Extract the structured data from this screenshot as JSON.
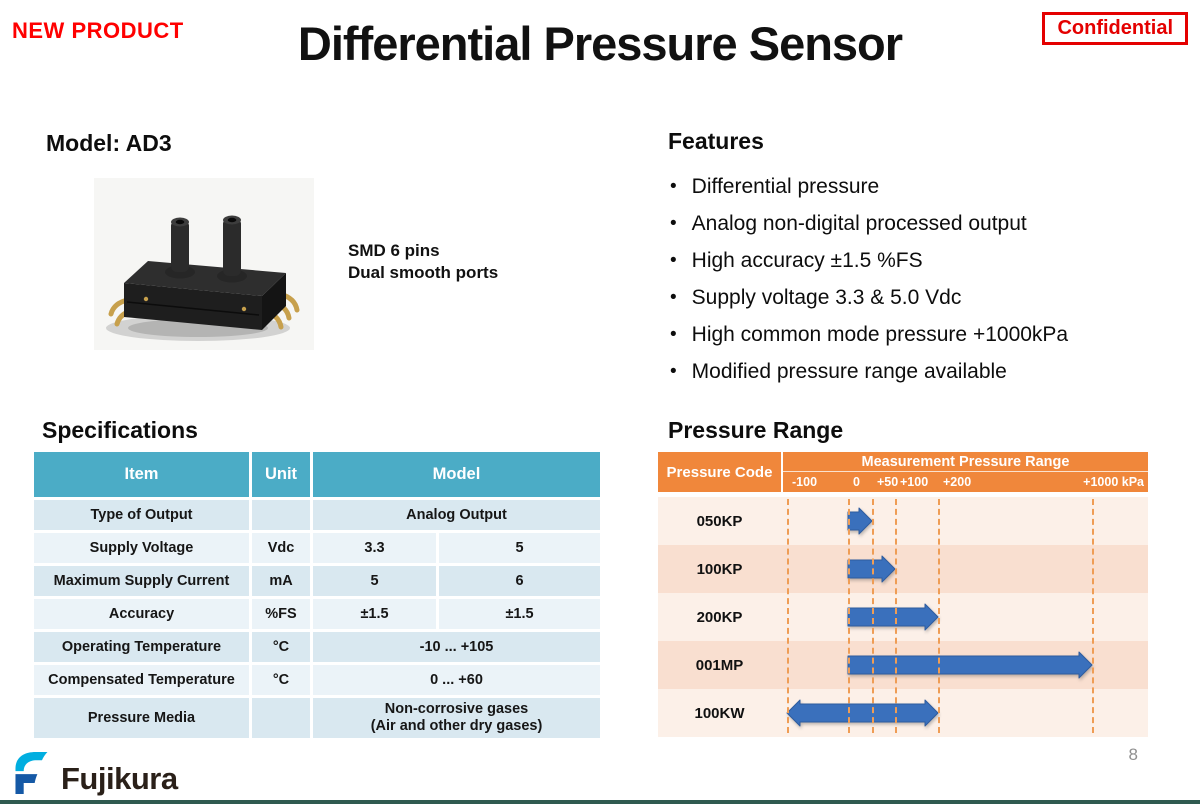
{
  "header": {
    "badge": "NEW PRODUCT",
    "title": "Differential Pressure Sensor",
    "confidential": "Confidential"
  },
  "model": {
    "heading": "Model: AD3",
    "caption_line1": "SMD 6 pins",
    "caption_line2": "Dual smooth ports"
  },
  "features": {
    "heading": "Features",
    "bullet": "•",
    "items": [
      "Differential pressure",
      "Analog non-digital processed output",
      "High accuracy ±1.5 %FS",
      "Supply voltage 3.3 & 5.0 Vdc",
      "High common mode pressure +1000kPa",
      "Modified pressure range available"
    ]
  },
  "specifications": {
    "heading": "Specifications",
    "table": {
      "headers": {
        "item": "Item",
        "unit": "Unit",
        "model": "Model"
      },
      "rows": [
        {
          "item": "Type of Output",
          "unit": "",
          "values": [
            "Analog Output"
          ]
        },
        {
          "item": "Supply Voltage",
          "unit": "Vdc",
          "values": [
            "3.3",
            "5"
          ]
        },
        {
          "item": "Maximum Supply Current",
          "unit": "mA",
          "values": [
            "5",
            "6"
          ]
        },
        {
          "item": "Accuracy",
          "unit": "%FS",
          "values": [
            "±1.5",
            "±1.5"
          ]
        },
        {
          "item": "Operating Temperature",
          "unit": "°C",
          "values": [
            "-10 ... +105"
          ]
        },
        {
          "item": "Compensated Temperature",
          "unit": "°C",
          "values": [
            "0 ... +60"
          ]
        },
        {
          "item": "Pressure Media",
          "unit": "",
          "values": [
            "Non-corrosive gases\n(Air and other dry gases)"
          ]
        }
      ]
    }
  },
  "pressure_range": {
    "heading": "Pressure Range"
  },
  "chart_data": {
    "type": "bar",
    "subtype": "horizontal-range-arrows",
    "title": "Measurement Pressure Range",
    "row_header": "Pressure Code",
    "categories": [
      "050KP",
      "100KP",
      "200KP",
      "001MP",
      "100KW"
    ],
    "series": [
      {
        "name": "Measurement Pressure Range (kPa)",
        "ranges": [
          [
            0,
            50
          ],
          [
            0,
            100
          ],
          [
            0,
            200
          ],
          [
            0,
            1000
          ],
          [
            -100,
            200
          ]
        ]
      }
    ],
    "double_headed": [
      false,
      false,
      false,
      false,
      true
    ],
    "xticks": {
      "labels": [
        "-100",
        "0",
        "+50",
        "+100",
        "+200",
        "+1000 kPa"
      ],
      "values": [
        -100,
        0,
        50,
        100,
        200,
        1000
      ],
      "px": [
        6,
        67,
        91,
        114,
        157,
        311
      ]
    },
    "axis_scale": "nonlinear-compressed",
    "grid": "dashed-vertical-orange",
    "legend": "none",
    "colors": {
      "header": "#F0873B",
      "row_light": "#FCF0E8",
      "row_dark": "#F9DFD0",
      "gridline": "#EF9D55",
      "arrow": "#3A70BC",
      "arrow_edge": "#2E5C9E"
    }
  },
  "branding": {
    "logo_text": "Fujikura"
  },
  "footer": {
    "page_number": "8"
  },
  "colors": {
    "accent_red": "#FF0000",
    "table_header_teal": "#4BACC6",
    "chart_header_orange": "#F0873B",
    "arrow_blue": "#3A70BC",
    "logo_cyan": "#00AEE0",
    "logo_blue": "#1559A6"
  }
}
